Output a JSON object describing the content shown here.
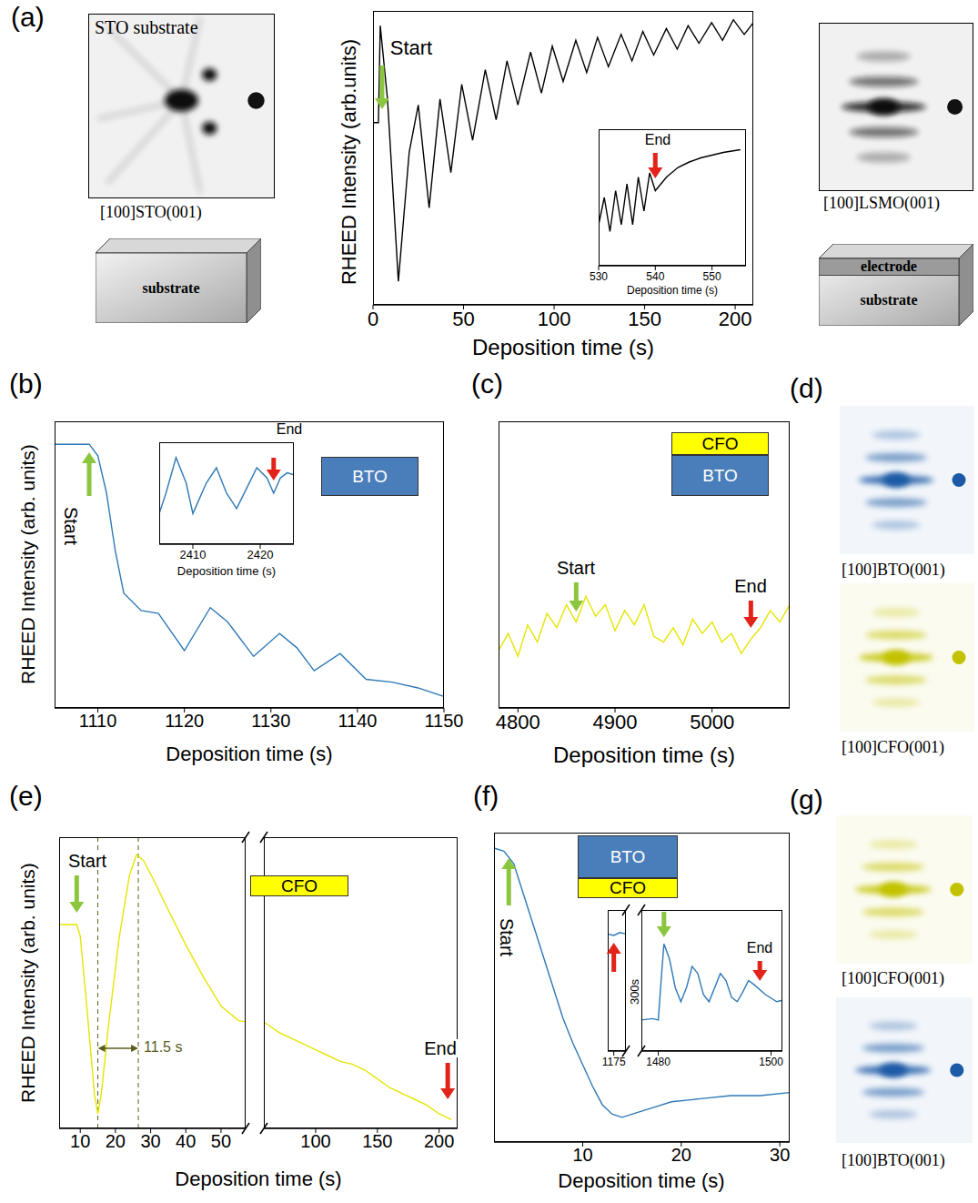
{
  "chart_data": [
    {
      "type": "line",
      "x_label": "Deposition time (s)",
      "y_label": "RHEED Intensity (arb.units)",
      "xlim": [
        0,
        210
      ],
      "xticks": [
        0,
        50,
        100,
        150,
        200
      ],
      "ylim": [
        0,
        10
      ],
      "tick_labels": "x",
      "series": [
        {
          "color": "#000000",
          "x": [
            0,
            3,
            4,
            8,
            14,
            20,
            25,
            31,
            37,
            43,
            49,
            55,
            62,
            68,
            74,
            80,
            87,
            93,
            99,
            105,
            112,
            118,
            124,
            130,
            137,
            143,
            149,
            155,
            162,
            168,
            174,
            180,
            187,
            193,
            199,
            205,
            210
          ],
          "values": [
            6.2,
            6.2,
            9.5,
            7.0,
            0.8,
            5.2,
            6.8,
            3.3,
            7.0,
            4.5,
            7.5,
            5.6,
            8.0,
            6.3,
            8.3,
            6.8,
            8.6,
            7.2,
            8.8,
            7.6,
            9.0,
            7.9,
            9.1,
            8.1,
            9.2,
            8.3,
            9.3,
            8.5,
            9.4,
            8.7,
            9.5,
            8.9,
            9.6,
            9.0,
            9.7,
            9.2,
            9.6
          ]
        }
      ],
      "annotations": [
        {
          "text": "Start",
          "x": 5,
          "color": "#8cc63f"
        }
      ]
    },
    {
      "type": "line",
      "x_label": "Deposition time (s)",
      "xlim": [
        530,
        556
      ],
      "xticks": [
        530,
        540,
        550
      ],
      "ylim": [
        0,
        10
      ],
      "tick_labels": "x",
      "series": [
        {
          "color": "#000000",
          "x": [
            530,
            531,
            532,
            533,
            534,
            535,
            536,
            537,
            538,
            539,
            540,
            542,
            544,
            546,
            548,
            550,
            552,
            555
          ],
          "values": [
            3,
            5,
            2.5,
            5.5,
            3,
            6,
            3,
            6.5,
            4,
            6.8,
            5.5,
            6.5,
            7.2,
            7.6,
            7.9,
            8.1,
            8.3,
            8.5
          ]
        }
      ],
      "annotations": [
        {
          "text": "End",
          "x": 540,
          "color": "#e2231a"
        }
      ]
    },
    {
      "type": "line",
      "x_label": "Deposition time (s)",
      "y_label": "RHEED Intensity (arb. units)",
      "xlim": [
        1105,
        1150
      ],
      "xticks": [
        1110,
        1120,
        1130,
        1140,
        1150
      ],
      "ylim": [
        0,
        10
      ],
      "tick_labels": "x",
      "series": [
        {
          "color": "#2e78b7",
          "x": [
            1105,
            1109,
            1110,
            1111,
            1112,
            1113,
            1115,
            1117,
            1120,
            1123,
            1125,
            1128,
            1131,
            1133,
            1135,
            1138,
            1141,
            1144,
            1147,
            1150
          ],
          "values": [
            9.2,
            9.2,
            8.8,
            7.5,
            5.5,
            4.0,
            3.4,
            3.3,
            2.0,
            3.5,
            3.0,
            1.8,
            2.6,
            2.1,
            1.3,
            1.9,
            1.0,
            0.9,
            0.7,
            0.4
          ]
        }
      ],
      "annotations": [
        {
          "text": "Start",
          "x": 1109,
          "color": "#8cc63f"
        }
      ],
      "layers": [
        {
          "text": "BTO",
          "color": "#4a7ebb"
        }
      ]
    },
    {
      "type": "line",
      "x_label": "Deposition time (s)",
      "xlim": [
        2405,
        2425
      ],
      "xticks": [
        2410,
        2420
      ],
      "ylim": [
        0,
        10
      ],
      "tick_labels": "x",
      "series": [
        {
          "color": "#2e78b7",
          "x": [
            2405,
            2406,
            2407.5,
            2409,
            2410,
            2412,
            2413.5,
            2415,
            2416.5,
            2418,
            2419.5,
            2421,
            2422,
            2423,
            2424,
            2425
          ],
          "values": [
            3,
            5,
            8.5,
            6,
            3,
            6,
            7.5,
            5,
            3.5,
            5.5,
            7.5,
            6.5,
            5,
            6.5,
            7,
            6.8
          ]
        }
      ],
      "annotations": [
        {
          "text": "End",
          "x": 2422,
          "color": "#e2231a"
        }
      ]
    },
    {
      "type": "line",
      "x_label": "Deposition time (s)",
      "xlim": [
        4780,
        5080
      ],
      "xticks": [
        4800,
        4900,
        5000
      ],
      "ylim": [
        0,
        10
      ],
      "tick_labels": "x",
      "series": [
        {
          "color": "#e5e500",
          "x": [
            4780,
            4790,
            4800,
            4810,
            4820,
            4830,
            4840,
            4850,
            4860,
            4870,
            4880,
            4890,
            4900,
            4910,
            4920,
            4930,
            4940,
            4950,
            4960,
            4970,
            4980,
            4990,
            5000,
            5010,
            5020,
            5030,
            5040,
            5050,
            5060,
            5070,
            5080
          ],
          "values": [
            2.0,
            2.6,
            1.8,
            2.9,
            2.3,
            3.3,
            2.8,
            3.6,
            3.0,
            3.9,
            3.2,
            3.6,
            2.7,
            3.4,
            2.9,
            3.6,
            2.5,
            2.3,
            2.8,
            2.2,
            3.1,
            2.6,
            3.0,
            2.3,
            2.6,
            1.9,
            2.4,
            2.8,
            3.4,
            3.0,
            3.6
          ]
        }
      ],
      "annotations": [
        {
          "text": "Start",
          "x": 4860,
          "color": "#8cc63f"
        },
        {
          "text": "End",
          "x": 5040,
          "color": "#e2231a"
        }
      ],
      "layers": [
        {
          "text": "CFO",
          "color": "#ffff00"
        },
        {
          "text": "BTO",
          "color": "#4a7ebb"
        }
      ]
    },
    {
      "type": "line",
      "x_label": "Deposition time (s)",
      "y_label": "RHEED Intensity (arb. units)",
      "xlim": [
        [
          4,
          57
        ],
        [
          58,
          215
        ]
      ],
      "xticks": [
        [
          10,
          20,
          30,
          40,
          50
        ],
        [
          100,
          150,
          200
        ]
      ],
      "ylim": [
        0,
        10
      ],
      "tick_labels": "x",
      "series": [
        {
          "color": "#e5e500",
          "x": [
            4,
            9,
            10,
            12,
            14,
            15,
            16,
            18,
            21,
            24,
            26,
            28,
            31,
            35,
            40,
            45,
            50,
            55,
            60,
            70,
            80,
            90,
            100,
            110,
            120,
            130,
            140,
            150,
            160,
            170,
            180,
            190,
            200,
            210
          ],
          "values": [
            7.0,
            7.0,
            6.6,
            4.0,
            1.2,
            0.5,
            1.2,
            3.5,
            6.5,
            8.7,
            9.4,
            9.2,
            8.5,
            7.5,
            6.3,
            5.2,
            4.2,
            3.7,
            3.6,
            3.3,
            3.1,
            2.9,
            2.7,
            2.5,
            2.3,
            2.2,
            2.0,
            1.7,
            1.4,
            1.2,
            1.0,
            0.8,
            0.5,
            0.3
          ]
        }
      ],
      "annotations": [
        {
          "text": "Start",
          "x": 9,
          "color": "#8cc63f"
        },
        {
          "text": "11.5 s",
          "x": 15,
          "x2": 26.5,
          "color": "#5c5c1f"
        },
        {
          "text": "End",
          "x": 207,
          "color": "#e2231a"
        }
      ],
      "layers": [
        {
          "text": "CFO",
          "color": "#ffff00"
        }
      ]
    },
    {
      "type": "line",
      "x_label": "Deposition time (s)",
      "xlim": [
        1,
        31
      ],
      "xticks": [
        10,
        20,
        30
      ],
      "ylim": [
        0,
        10
      ],
      "tick_labels": "x",
      "series": [
        {
          "color": "#2e78b7",
          "x": [
            1,
            2,
            3,
            4,
            5,
            6,
            7,
            8,
            9,
            10,
            11,
            12,
            13,
            14,
            15,
            17,
            19,
            22,
            25,
            28,
            31
          ],
          "values": [
            9.5,
            9.4,
            9.0,
            8.0,
            7.0,
            6.0,
            5.0,
            4.0,
            3.2,
            2.5,
            1.8,
            1.2,
            0.9,
            0.8,
            0.9,
            1.1,
            1.3,
            1.4,
            1.5,
            1.5,
            1.6
          ]
        }
      ],
      "annotations": [
        {
          "text": "Start",
          "x": 2.5,
          "color": "#8cc63f"
        }
      ],
      "layers": [
        {
          "text": "BTO",
          "color": "#4a7ebb"
        },
        {
          "text": "CFO",
          "color": "#ffff00"
        }
      ]
    },
    {
      "type": "line",
      "xlim": [
        [
          1174,
          1177
        ],
        [
          1477,
          1502
        ]
      ],
      "xticks": [
        [
          1175
        ],
        [
          1480,
          1500
        ]
      ],
      "ylim": [
        0,
        10
      ],
      "tick_labels": "x",
      "series": [
        {
          "color": "#2e78b7",
          "x": [
            1174,
            1175,
            1176,
            1177,
            1477,
            1479,
            1480,
            1480.5,
            1481,
            1482,
            1483,
            1484,
            1485,
            1486,
            1487,
            1488,
            1489,
            1490,
            1491,
            1492,
            1493,
            1494,
            1495,
            1496,
            1497,
            1499,
            1501,
            1502
          ],
          "values": [
            8.3,
            8.2,
            8.4,
            8.3,
            2.2,
            2.3,
            2.2,
            5.0,
            7.6,
            6.5,
            4.5,
            3.5,
            4.5,
            6.0,
            5.5,
            4.0,
            3.5,
            4.5,
            5.5,
            5.0,
            3.8,
            3.5,
            4.2,
            5.0,
            4.7,
            4.0,
            3.5,
            3.6
          ]
        }
      ],
      "annotations": [
        {
          "x": 1175,
          "color": "#e2231a"
        },
        {
          "x": 1481,
          "color": "#8cc63f"
        },
        {
          "text": "End",
          "x": 1498,
          "color": "#e2231a"
        },
        {
          "text": "300s"
        }
      ]
    }
  ],
  "figure": {
    "panel_labels": [
      "(a)",
      "(b)",
      "(c)",
      "(d)",
      "(e)",
      "(f)",
      "(g)"
    ],
    "images": [
      {
        "title": "STO substrate",
        "caption": "[100]STO(001)",
        "color": "#111111"
      },
      {
        "caption": "[100]LSMO(001)",
        "color": "#111111"
      },
      {
        "caption": "[100]BTO(001)",
        "color": "#1c5aa6"
      },
      {
        "caption": "[100]CFO(001)",
        "color": "#c2c200"
      },
      {
        "caption": "[100]CFO(001)",
        "color": "#c2c200"
      },
      {
        "caption": "[100]BTO(001)",
        "color": "#1c5aa6"
      }
    ],
    "schematics": [
      {
        "layers": [
          "substrate"
        ]
      },
      {
        "layers": [
          "electrode",
          "substrate"
        ]
      }
    ]
  }
}
